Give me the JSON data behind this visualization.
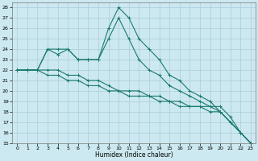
{
  "xlabel": "Humidex (Indice chaleur)",
  "background_color": "#cce8f0",
  "grid_color": "#aaccd8",
  "line_color": "#1a7a6e",
  "xlim": [
    -0.5,
    23.5
  ],
  "ylim": [
    15,
    28.5
  ],
  "xticks": [
    0,
    1,
    2,
    3,
    4,
    5,
    6,
    7,
    8,
    9,
    10,
    11,
    12,
    13,
    14,
    15,
    16,
    17,
    18,
    19,
    20,
    21,
    22,
    23
  ],
  "yticks": [
    15,
    16,
    17,
    18,
    19,
    20,
    21,
    22,
    23,
    24,
    25,
    26,
    27,
    28
  ],
  "line1_x": [
    0,
    1,
    2,
    3,
    4,
    5,
    6,
    7,
    8,
    9,
    10,
    11,
    12,
    13,
    14,
    15,
    16,
    17,
    18,
    19,
    20,
    21,
    22,
    23
  ],
  "line1_y": [
    22,
    22,
    22,
    24,
    24,
    24,
    23,
    23,
    23,
    26,
    28,
    27,
    25,
    24,
    23,
    21.5,
    21,
    20,
    19.5,
    19,
    18,
    17,
    16,
    15
  ],
  "line2_x": [
    0,
    1,
    2,
    3,
    4,
    5,
    6,
    7,
    8,
    9,
    10,
    11,
    12,
    13,
    14,
    15,
    16,
    17,
    18,
    19,
    20,
    21,
    22,
    23
  ],
  "line2_y": [
    22,
    22,
    22,
    24,
    23.5,
    24,
    23,
    23,
    23,
    25,
    27,
    25,
    23,
    22,
    21.5,
    20.5,
    20,
    19.5,
    19,
    18.5,
    18,
    17,
    16,
    15
  ],
  "line3_x": [
    0,
    1,
    2,
    3,
    4,
    5,
    6,
    7,
    8,
    9,
    10,
    11,
    12,
    13,
    14,
    15,
    16,
    17,
    18,
    19,
    20,
    21,
    22,
    23
  ],
  "line3_y": [
    22,
    22,
    22,
    22,
    22,
    21.5,
    21.5,
    21,
    21,
    20.5,
    20,
    20,
    20,
    19.5,
    19.5,
    19,
    19,
    18.5,
    18.5,
    18.5,
    18.5,
    17.5,
    16,
    15
  ],
  "line4_x": [
    0,
    1,
    2,
    3,
    4,
    5,
    6,
    7,
    8,
    9,
    10,
    11,
    12,
    13,
    14,
    15,
    16,
    17,
    18,
    19,
    20,
    21,
    22,
    23
  ],
  "line4_y": [
    22,
    22,
    22,
    21.5,
    21.5,
    21,
    21,
    20.5,
    20.5,
    20,
    20,
    19.5,
    19.5,
    19.5,
    19,
    19,
    18.5,
    18.5,
    18.5,
    18,
    18,
    17,
    16,
    15
  ]
}
